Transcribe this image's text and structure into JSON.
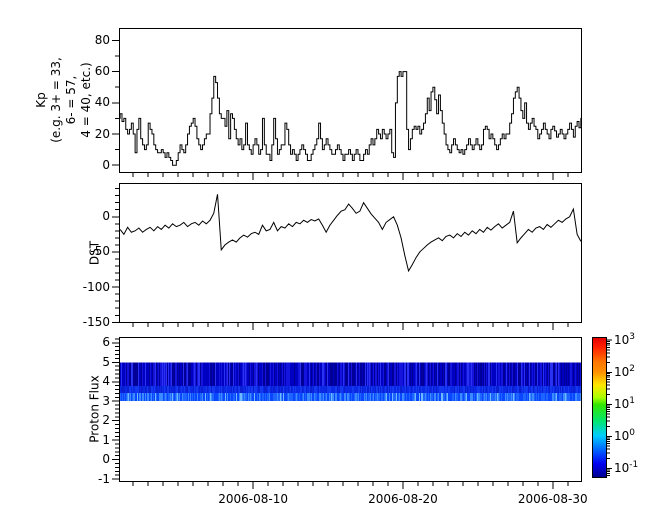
{
  "figure": {
    "background": "#ffffff",
    "line_color": "#000000",
    "frame_color": "#000000"
  },
  "panels": {
    "kp": {
      "ylabel_lines": [
        "Kp",
        "(e.g. 3+ = 33,",
        "6- = 57,",
        "4 = 40, etc.)"
      ]
    },
    "dst": {
      "ylabel": "DST"
    },
    "flux": {
      "ylabel": "Proton Flux"
    }
  },
  "chart_data": [
    {
      "type": "line",
      "name": "kp-index",
      "line_style": "steps",
      "ylabel": "Kp (e.g. 3+ = 33, 6- = 57, 4 = 40, etc.)",
      "ylim": [
        -5,
        88
      ],
      "ytick_values": [
        0,
        20,
        40,
        60,
        80
      ],
      "ytick_labels": [
        "0",
        "20",
        "40",
        "60",
        "80"
      ],
      "y_minor_step": 10,
      "xaxis": {
        "xlim_days": [
          1.05,
          31.95
        ],
        "month": "2006-08",
        "major_tick_days": [
          10,
          20,
          30
        ],
        "major_tick_labels": [
          "2006-08-10",
          "2006-08-20",
          "2006-08-30"
        ],
        "minor_step_days": 1
      },
      "x_start_day": 1.0,
      "x_step_days": 0.125,
      "values": [
        30,
        33,
        28,
        30,
        23,
        20,
        23,
        27,
        20,
        8,
        23,
        30,
        17,
        13,
        10,
        13,
        27,
        23,
        20,
        13,
        10,
        8,
        8,
        10,
        8,
        5,
        8,
        5,
        3,
        0,
        0,
        3,
        8,
        13,
        10,
        8,
        13,
        20,
        25,
        27,
        30,
        25,
        17,
        13,
        10,
        13,
        17,
        20,
        20,
        33,
        43,
        57,
        53,
        43,
        33,
        30,
        30,
        25,
        35,
        17,
        33,
        30,
        23,
        17,
        13,
        17,
        10,
        13,
        27,
        13,
        10,
        7,
        13,
        17,
        13,
        7,
        10,
        30,
        13,
        7,
        7,
        3,
        13,
        30,
        17,
        7,
        10,
        13,
        13,
        27,
        23,
        13,
        7,
        10,
        7,
        3,
        7,
        10,
        13,
        10,
        7,
        3,
        3,
        7,
        10,
        13,
        17,
        27,
        17,
        10,
        13,
        17,
        13,
        10,
        7,
        7,
        10,
        13,
        10,
        7,
        3,
        7,
        7,
        10,
        7,
        3,
        7,
        10,
        7,
        3,
        3,
        7,
        10,
        7,
        13,
        17,
        13,
        17,
        23,
        20,
        17,
        23,
        20,
        17,
        20,
        23,
        8,
        5,
        40,
        57,
        60,
        57,
        60,
        60,
        23,
        10,
        17,
        23,
        25,
        23,
        25,
        20,
        23,
        27,
        33,
        43,
        35,
        47,
        50,
        42,
        33,
        45,
        35,
        27,
        20,
        13,
        10,
        8,
        13,
        17,
        13,
        10,
        8,
        10,
        7,
        10,
        13,
        17,
        13,
        10,
        13,
        17,
        13,
        10,
        13,
        23,
        25,
        23,
        17,
        20,
        17,
        13,
        10,
        13,
        17,
        20,
        17,
        20,
        20,
        27,
        33,
        43,
        47,
        50,
        43,
        35,
        30,
        40,
        27,
        23,
        27,
        30,
        25,
        23,
        17,
        20,
        23,
        27,
        23,
        20,
        17,
        23,
        25,
        22,
        18,
        20,
        23,
        20,
        17,
        20,
        23,
        27,
        23,
        18,
        25,
        28,
        24,
        30
      ]
    },
    {
      "type": "line",
      "name": "dst-index",
      "line_style": "line",
      "ylabel": "DST",
      "ylim": [
        -151,
        48
      ],
      "ytick_values": [
        0,
        -50,
        -100,
        -150
      ],
      "ytick_labels": [
        "0",
        "-50",
        "-100",
        "-150"
      ],
      "y_minor_step": 10,
      "x_start_day": 1.125,
      "x_step_days": 0.25,
      "values": [
        -18,
        -25,
        -15,
        -22,
        -20,
        -16,
        -22,
        -18,
        -15,
        -20,
        -14,
        -18,
        -12,
        -16,
        -10,
        -14,
        -12,
        -8,
        -14,
        -10,
        -8,
        -12,
        -6,
        -10,
        -5,
        5,
        32,
        -47,
        -40,
        -36,
        -33,
        -36,
        -30,
        -26,
        -29,
        -24,
        -22,
        -25,
        -12,
        -20,
        -18,
        -8,
        -20,
        -14,
        -16,
        -10,
        -14,
        -8,
        -10,
        -5,
        -8,
        -4,
        -6,
        -3,
        -12,
        -22,
        -12,
        -5,
        2,
        8,
        10,
        18,
        12,
        5,
        8,
        20,
        12,
        4,
        -2,
        -8,
        -18,
        -8,
        -4,
        0,
        -12,
        -30,
        -55,
        -77,
        -68,
        -58,
        -50,
        -45,
        -40,
        -36,
        -33,
        -30,
        -34,
        -28,
        -26,
        -30,
        -24,
        -28,
        -22,
        -26,
        -20,
        -24,
        -18,
        -22,
        -15,
        -19,
        -14,
        -10,
        -16,
        -12,
        -8,
        8,
        -37,
        -30,
        -24,
        -18,
        -22,
        -16,
        -14,
        -18,
        -11,
        -15,
        -10,
        -5,
        -8,
        -3,
        0,
        11,
        -25,
        -35
      ]
    },
    {
      "type": "heatmap",
      "name": "proton-flux-spectrogram",
      "ylabel": "Proton Flux",
      "ylim": [
        -1.15,
        6.3
      ],
      "ytick_values": [
        -1,
        0,
        1,
        2,
        3,
        4,
        5,
        6
      ],
      "ytick_labels": [
        "-1",
        "0",
        "1",
        "2",
        "3",
        "4",
        "5",
        "6"
      ],
      "y_minor_step": 0.2,
      "band": {
        "y_from": 3,
        "y_to": 5,
        "description": "continuous low-flux blue band spanning the full time range; darker blue in upper part, brighter blue striations near the lower edge",
        "main_colors": [
          "#000096",
          "#0000c3",
          "#1414dc",
          "#2832f0"
        ],
        "mid_colors": [
          "#0a28e6",
          "#1437f0",
          "#0a1ed2"
        ],
        "bottom_colors": [
          "#0a46ff",
          "#1e64ff",
          "#3c8cff",
          "#6eb9ff"
        ]
      },
      "colorbar": {
        "scale": "log",
        "colormap": "jet",
        "range_exp": [
          -1.3,
          3.1
        ],
        "major_tick_exps": [
          3,
          2,
          1,
          0,
          -1
        ],
        "tick_labels": [
          {
            "base": "10",
            "exp": "3"
          },
          {
            "base": "10",
            "exp": "2"
          },
          {
            "base": "10",
            "exp": "1"
          },
          {
            "base": "10",
            "exp": "0"
          },
          {
            "base": "10",
            "exp": "-1"
          }
        ],
        "gradient_stops": [
          [
            0.0,
            "#000089"
          ],
          [
            0.1,
            "#0000f0"
          ],
          [
            0.18,
            "#0050ff"
          ],
          [
            0.3,
            "#00cdff"
          ],
          [
            0.4,
            "#00e673"
          ],
          [
            0.52,
            "#32e600"
          ],
          [
            0.57,
            "#aaff00"
          ],
          [
            0.66,
            "#ffe600"
          ],
          [
            0.75,
            "#ff9100"
          ],
          [
            0.82,
            "#ff7800"
          ],
          [
            0.93,
            "#ff1e00"
          ],
          [
            1.0,
            "#e10000"
          ]
        ]
      }
    }
  ]
}
